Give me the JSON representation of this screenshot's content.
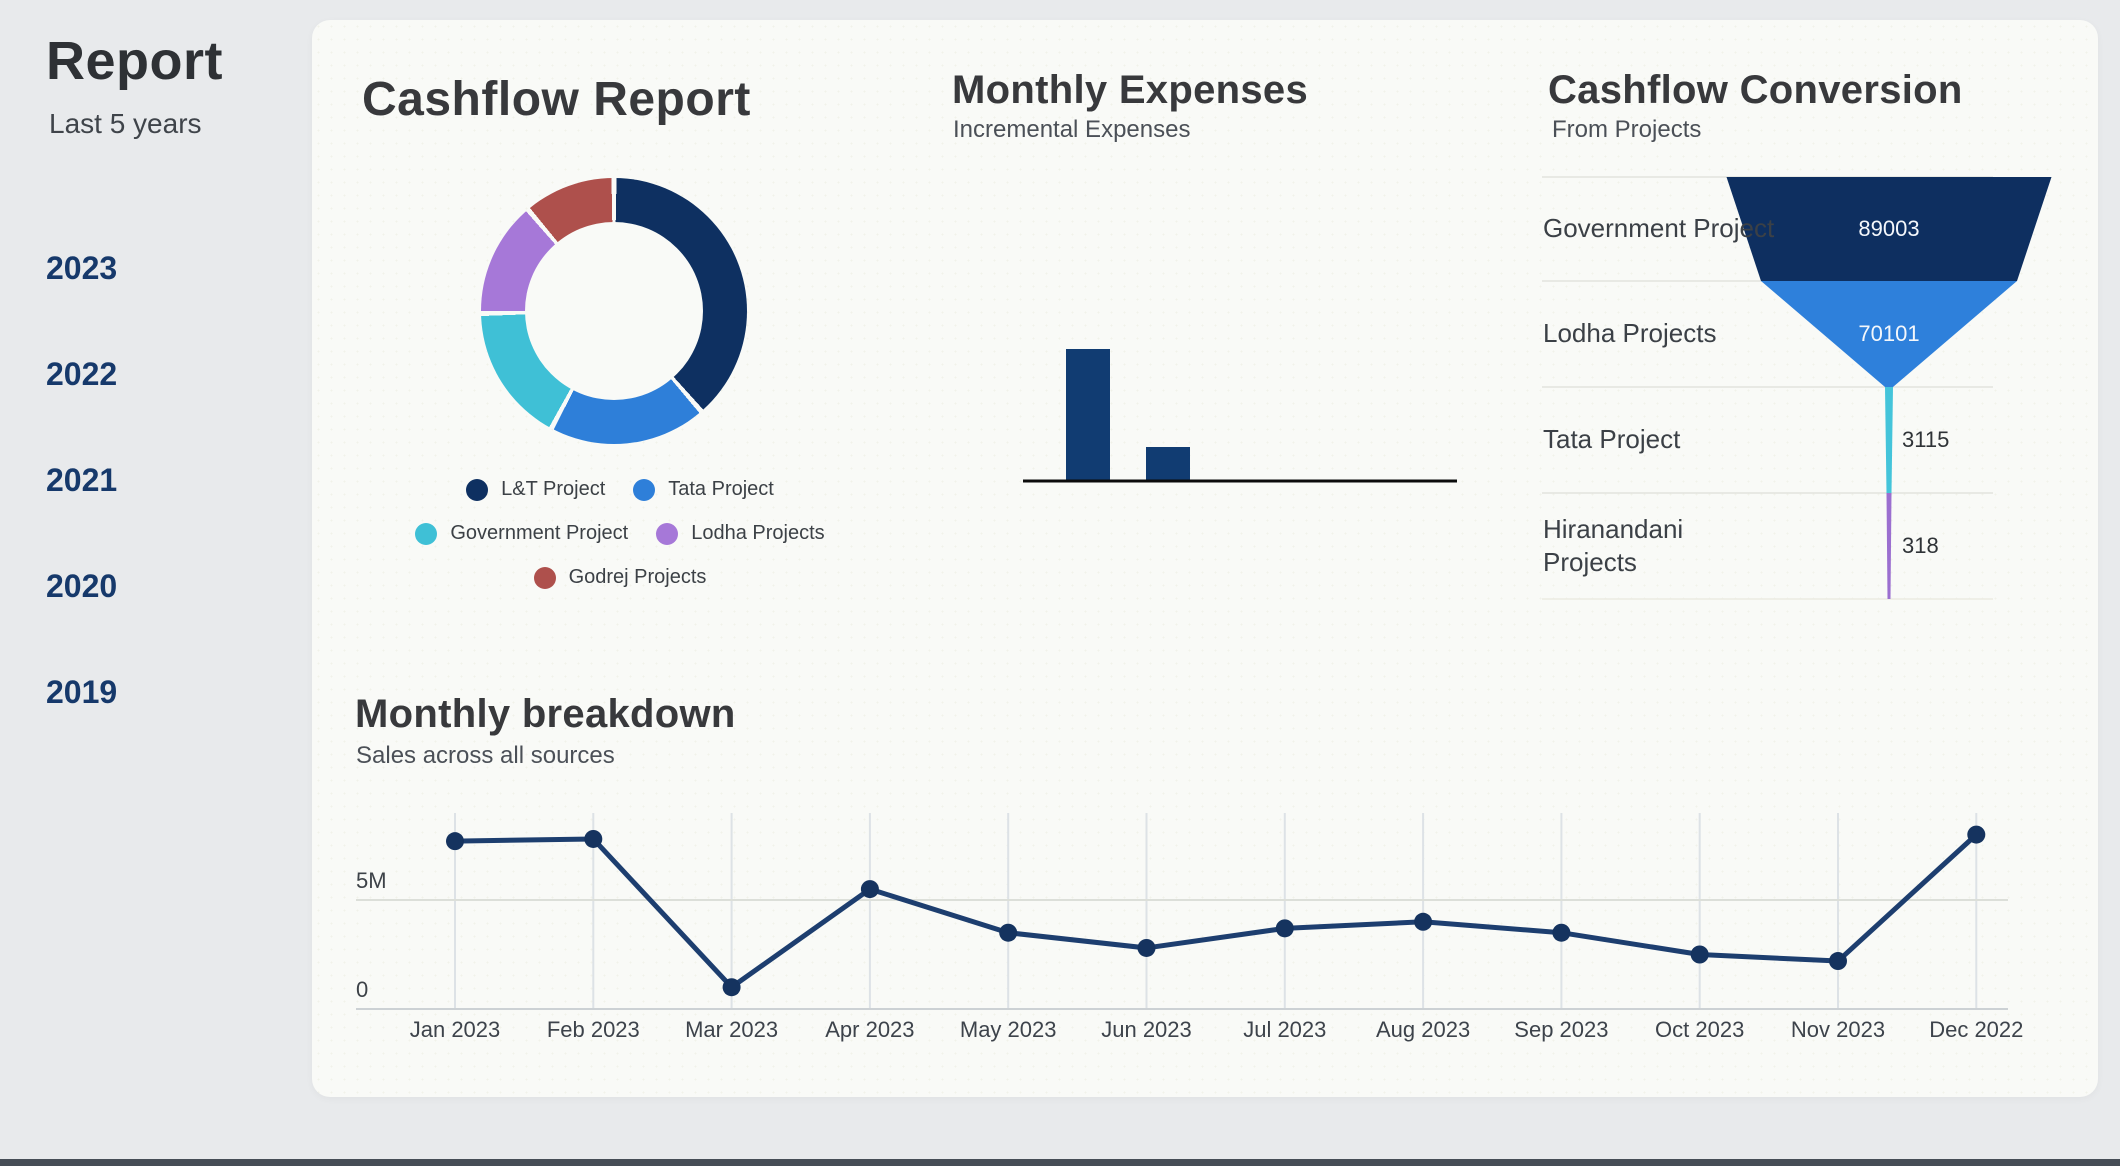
{
  "sidebar": {
    "title": "Report",
    "subtitle": "Last 5 years",
    "years": [
      "2023",
      "2022",
      "2021",
      "2020",
      "2019"
    ]
  },
  "sections": {
    "donut": {
      "title": "Cashflow Report"
    },
    "expenses": {
      "title": "Monthly Expenses",
      "subtitle": "Incremental Expenses"
    },
    "funnel": {
      "title": "Cashflow Conversion",
      "subtitle": "From Projects"
    },
    "breakdown": {
      "title": "Monthly breakdown",
      "subtitle": "Sales across all sources"
    }
  },
  "colors": {
    "card_bg": "#f9faf7",
    "page_bg": "#e8eaec",
    "accent_navy": "#16396b"
  },
  "chart_data": [
    {
      "type": "pie",
      "title": "Cashflow Report",
      "labels": [
        "L&T Project",
        "Tata Project",
        "Government Project",
        "Lodha Projects",
        "Godrej Projects"
      ],
      "values": [
        38.6,
        19.2,
        16.9,
        14.1,
        11.2
      ],
      "colors": [
        "#0e3061",
        "#2e7fd9",
        "#3fc0d6",
        "#a678d8",
        "#ae504c"
      ],
      "hole_ratio": 0.67,
      "legend_rows": [
        [
          0,
          1
        ],
        [
          2,
          3
        ],
        [
          4
        ]
      ],
      "legend_position": "bottom"
    },
    {
      "type": "bar",
      "title": "Monthly Expenses",
      "categories": [
        "",
        ""
      ],
      "values": [
        132,
        34
      ],
      "bar_color": "#113c72",
      "baseline_color": "#0c0c0c",
      "note": "unlabeled axis"
    },
    {
      "type": "funnel",
      "title": "Cashflow Conversion",
      "stages": [
        {
          "label": "Government Project",
          "value": "89003",
          "color": "#0e2f60",
          "value_style": "light"
        },
        {
          "label": "Lodha Projects",
          "value": "70101",
          "color": "#2e80db",
          "value_style": "light"
        },
        {
          "label": "Tata Project",
          "value": "3115",
          "color": "#44c4da",
          "value_style": "dark"
        },
        {
          "label": "Hiranandani Projects",
          "value": "318",
          "color": "#9b6fd0",
          "value_style": "dark"
        }
      ]
    },
    {
      "type": "line",
      "title": "Monthly breakdown",
      "x": [
        "Jan 2023",
        "Feb 2023",
        "Mar 2023",
        "Apr 2023",
        "May 2023",
        "Jun 2023",
        "Jul 2023",
        "Aug 2023",
        "Sep 2023",
        "Oct 2023",
        "Nov 2023",
        "Dec 2022"
      ],
      "y_millions": [
        7.7,
        7.8,
        1.0,
        5.5,
        3.5,
        2.8,
        3.7,
        4.0,
        3.5,
        2.5,
        2.2,
        8.0
      ],
      "yticks": [
        {
          "label": "0",
          "value": 0
        },
        {
          "label": "5M",
          "value": 5
        }
      ],
      "ylim": [
        0,
        9
      ],
      "grid": true,
      "line_color": "#1d3e6f",
      "point_color": "#15335f"
    }
  ]
}
